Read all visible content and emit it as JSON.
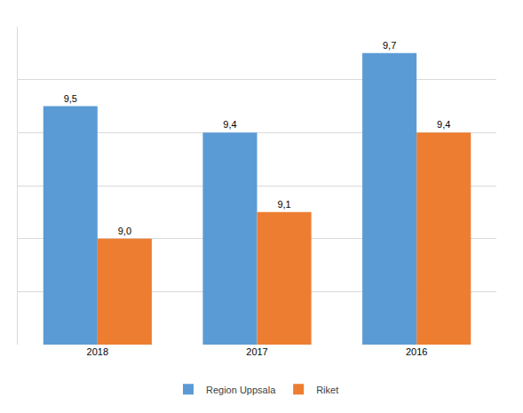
{
  "chart_data": {
    "type": "bar",
    "categories": [
      "2018",
      "2017",
      "2016"
    ],
    "series": [
      {
        "name": "Region Uppsala",
        "color": "#5b9bd5",
        "values": [
          9.5,
          9.4,
          9.7
        ],
        "value_labels": [
          "9,5",
          "9,4",
          "9,7"
        ]
      },
      {
        "name": "Riket",
        "color": "#ed7d31",
        "values": [
          9.0,
          9.1,
          9.4
        ],
        "value_labels": [
          "9,0",
          "9,1",
          "9,4"
        ]
      }
    ],
    "ylim": [
      8.6,
      9.8
    ],
    "yticks": [
      8.6,
      8.8,
      9.0,
      9.2,
      9.4,
      9.6,
      9.8
    ],
    "grid": true,
    "legend": "bottom",
    "data_labels": true,
    "tick_labels": "x"
  }
}
